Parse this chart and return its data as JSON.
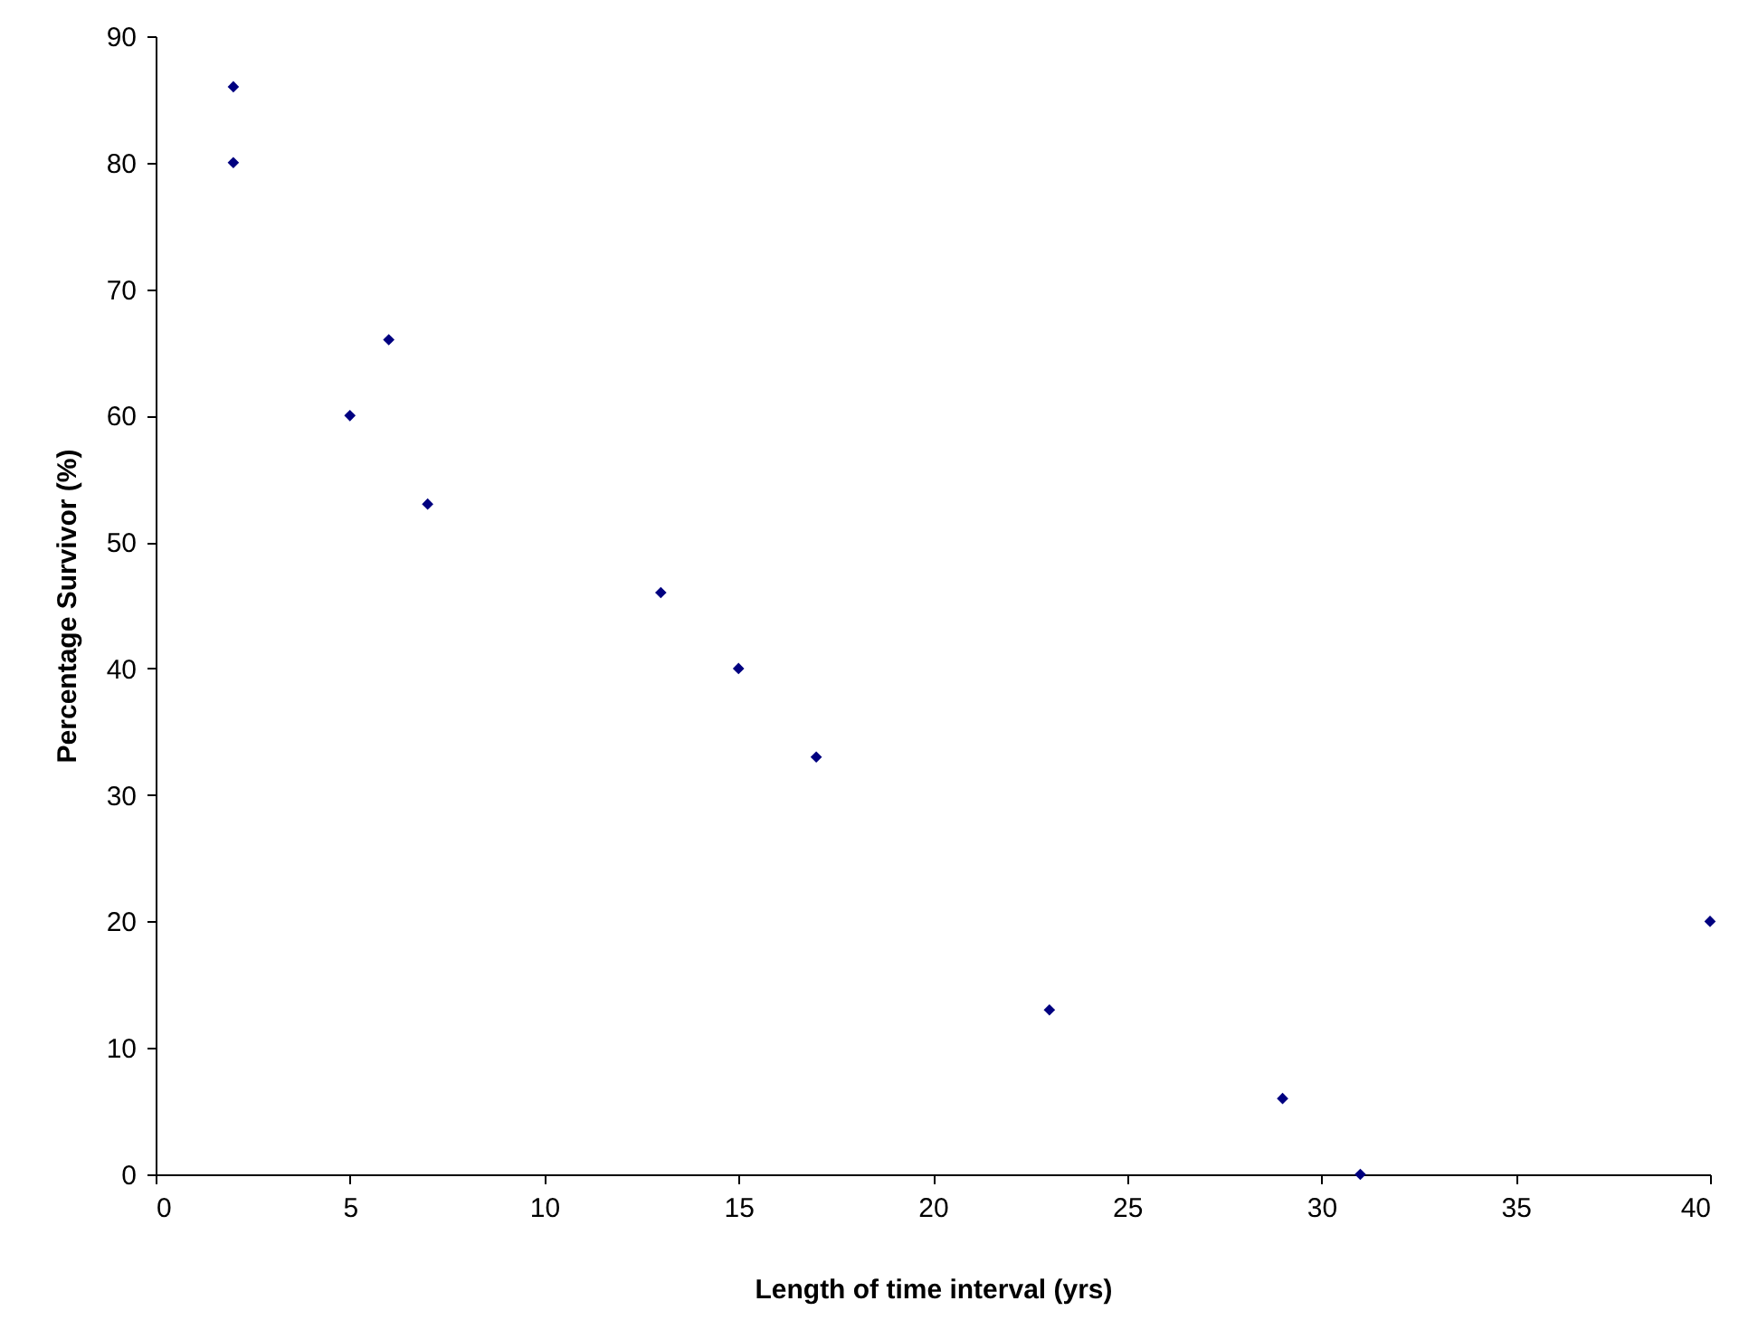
{
  "chart_data": {
    "type": "scatter",
    "xlabel": "Length of time interval (yrs)",
    "ylabel": "Percentage Survivor (%)",
    "x": [
      2,
      2,
      5,
      6,
      7,
      13,
      15,
      17,
      23,
      29,
      31,
      40
    ],
    "series": [
      {
        "color": "#000080",
        "values": [
          86,
          80,
          60,
          66,
          53,
          46,
          40,
          33,
          13,
          6,
          0,
          20
        ]
      }
    ],
    "xlim": [
      0,
      40
    ],
    "xticks": [
      0,
      5,
      10,
      15,
      20,
      25,
      30,
      35,
      40
    ],
    "ylim": [
      0,
      90
    ],
    "yticks": [
      0,
      10,
      20,
      30,
      40,
      50,
      60,
      70,
      80,
      90
    ],
    "marker": "diamond",
    "grid": false,
    "legend": false
  }
}
